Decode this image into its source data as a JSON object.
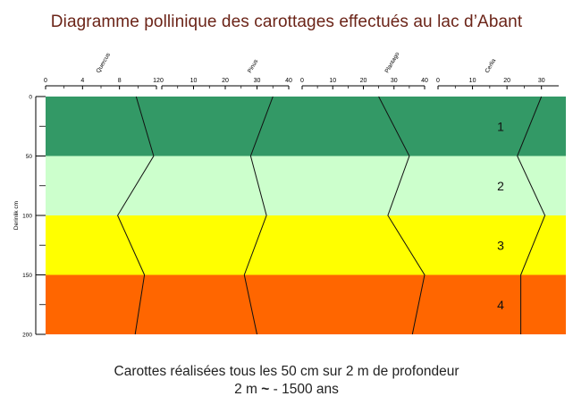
{
  "title": "Diagramme pollinique des carottages effectués au lac d’Abant",
  "caption": {
    "line1": "Carottes réalisées tous les 50 cm sur 2 m de profondeur",
    "line2_start": "2 m",
    "line2_symbol": "~",
    "line2_end": "- 1500 ans"
  },
  "chart_data": {
    "type": "line",
    "ylabel": "Derinlik cm",
    "y_ticks": [
      "0",
      "50",
      "100",
      "150",
      "200"
    ],
    "ylim": [
      0,
      200
    ],
    "depth": [
      0,
      50,
      100,
      150,
      200
    ],
    "zones": [
      {
        "label": "1",
        "from": 0,
        "to": 50,
        "color": "#339966"
      },
      {
        "label": "2",
        "from": 50,
        "to": 100,
        "color": "#ccffcc"
      },
      {
        "label": "3",
        "from": 100,
        "to": 150,
        "color": "#ffff00"
      },
      {
        "label": "4",
        "from": 150,
        "to": 200,
        "color": "#ff6600"
      }
    ],
    "panels": [
      {
        "name": "Quercus",
        "ticks": [
          "0",
          "4",
          "8",
          "12"
        ],
        "xmax": 12,
        "values": [
          9.8,
          11.7,
          7.8,
          10.7,
          9.7
        ]
      },
      {
        "name": "Pinus",
        "ticks": [
          "0",
          "10",
          "20",
          "30",
          "40"
        ],
        "xmax": 40,
        "values": [
          35,
          28,
          33,
          26,
          30
        ]
      },
      {
        "name": "Plantago",
        "ticks": [
          "0",
          "10",
          "20",
          "30",
          "40"
        ],
        "xmax": 40,
        "values": [
          25,
          35,
          28,
          40,
          36
        ]
      },
      {
        "name": "Cerlia",
        "ticks": [
          "0",
          "10",
          "20",
          "30"
        ],
        "xmax": 35,
        "values": [
          30,
          23,
          31,
          24,
          24
        ]
      }
    ]
  }
}
